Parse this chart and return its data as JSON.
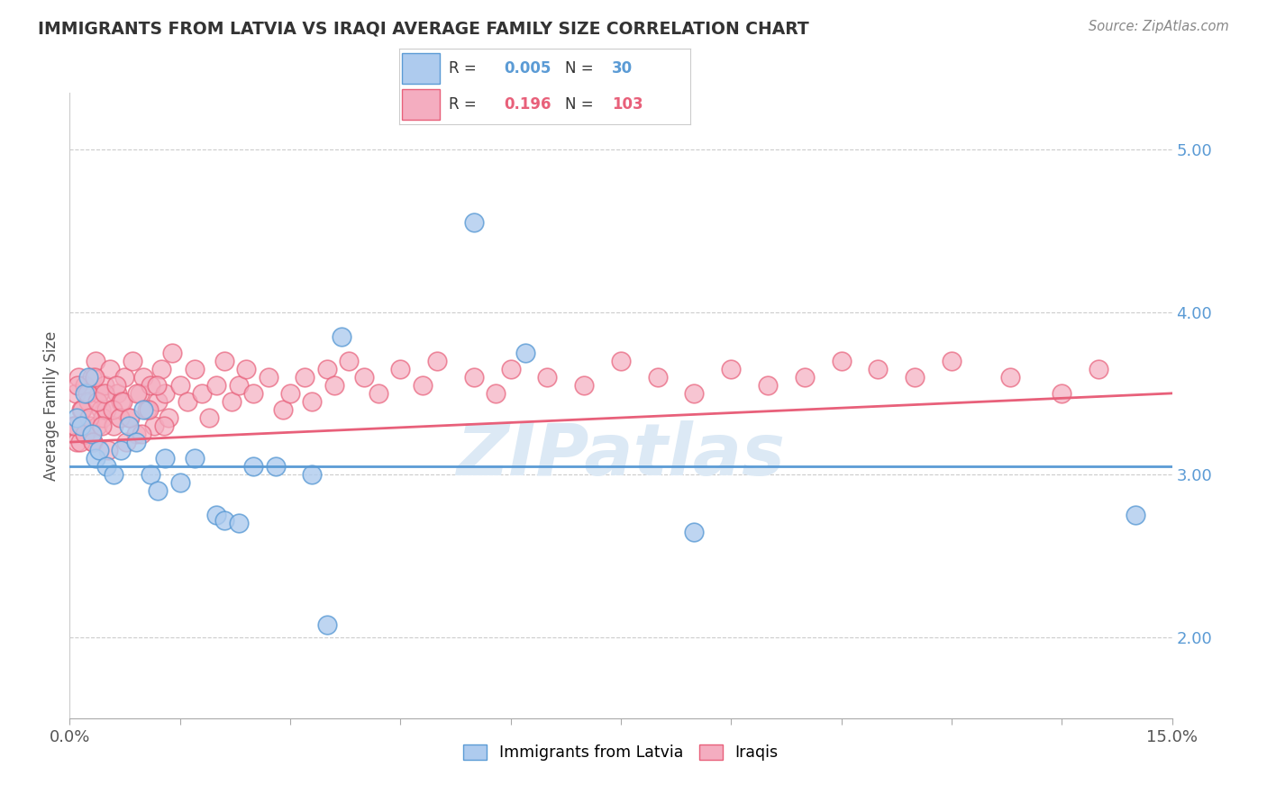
{
  "title": "IMMIGRANTS FROM LATVIA VS IRAQI AVERAGE FAMILY SIZE CORRELATION CHART",
  "source": "Source: ZipAtlas.com",
  "ylabel": "Average Family Size",
  "xmin": 0.0,
  "xmax": 15.0,
  "ymin": 1.5,
  "ymax": 5.35,
  "yticks": [
    2.0,
    3.0,
    4.0,
    5.0
  ],
  "background_color": "#ffffff",
  "watermark": "ZIPatlas",
  "legend_R1": "0.005",
  "legend_N1": "30",
  "legend_R2": "0.196",
  "legend_N2": "103",
  "label1": "Immigrants from Latvia",
  "label2": "Iraqis",
  "color1": "#aecbee",
  "color2": "#f4adc0",
  "trendline1_color": "#5b9bd5",
  "trendline2_color": "#e8607a",
  "blue_points_x": [
    0.1,
    0.15,
    0.2,
    0.25,
    0.3,
    0.35,
    0.4,
    0.5,
    0.6,
    0.7,
    0.8,
    0.9,
    1.0,
    1.1,
    1.2,
    1.3,
    1.5,
    1.7,
    2.0,
    2.1,
    2.3,
    2.5,
    2.8,
    3.3,
    3.7,
    5.5,
    6.2,
    8.5,
    14.5,
    3.5
  ],
  "blue_points_y": [
    3.35,
    3.3,
    3.5,
    3.6,
    3.25,
    3.1,
    3.15,
    3.05,
    3.0,
    3.15,
    3.3,
    3.2,
    3.4,
    3.0,
    2.9,
    3.1,
    2.95,
    3.1,
    2.75,
    2.72,
    2.7,
    3.05,
    3.05,
    3.0,
    3.85,
    4.55,
    3.75,
    2.65,
    2.75,
    2.08
  ],
  "pink_points_x": [
    0.05,
    0.08,
    0.1,
    0.12,
    0.15,
    0.18,
    0.2,
    0.22,
    0.25,
    0.28,
    0.3,
    0.32,
    0.35,
    0.38,
    0.4,
    0.42,
    0.45,
    0.48,
    0.5,
    0.55,
    0.6,
    0.65,
    0.7,
    0.75,
    0.8,
    0.85,
    0.9,
    0.95,
    1.0,
    1.05,
    1.1,
    1.15,
    1.2,
    1.25,
    1.3,
    1.35,
    1.4,
    1.5,
    1.6,
    1.7,
    1.8,
    1.9,
    2.0,
    2.1,
    2.2,
    2.3,
    2.4,
    2.5,
    2.7,
    2.9,
    3.0,
    3.2,
    3.3,
    3.5,
    3.6,
    3.8,
    4.0,
    4.2,
    4.5,
    4.8,
    5.0,
    5.5,
    5.8,
    6.0,
    6.5,
    7.0,
    7.5,
    8.0,
    8.5,
    9.0,
    9.5,
    10.0,
    10.5,
    11.0,
    11.5,
    12.0,
    12.8,
    13.5,
    14.0,
    0.07,
    0.11,
    0.14,
    0.17,
    0.21,
    0.24,
    0.27,
    0.31,
    0.34,
    0.37,
    0.44,
    0.47,
    0.52,
    0.58,
    0.63,
    0.68,
    0.72,
    0.77,
    0.82,
    0.92,
    0.98,
    1.08,
    1.18,
    1.28
  ],
  "pink_points_y": [
    3.3,
    3.5,
    3.2,
    3.6,
    3.4,
    3.3,
    3.55,
    3.25,
    3.45,
    3.3,
    3.6,
    3.2,
    3.7,
    3.3,
    3.5,
    3.4,
    3.35,
    3.55,
    3.4,
    3.65,
    3.3,
    3.5,
    3.45,
    3.6,
    3.35,
    3.7,
    3.25,
    3.5,
    3.6,
    3.4,
    3.55,
    3.3,
    3.45,
    3.65,
    3.5,
    3.35,
    3.75,
    3.55,
    3.45,
    3.65,
    3.5,
    3.35,
    3.55,
    3.7,
    3.45,
    3.55,
    3.65,
    3.5,
    3.6,
    3.4,
    3.5,
    3.6,
    3.45,
    3.65,
    3.55,
    3.7,
    3.6,
    3.5,
    3.65,
    3.55,
    3.7,
    3.6,
    3.5,
    3.65,
    3.6,
    3.55,
    3.7,
    3.6,
    3.5,
    3.65,
    3.55,
    3.6,
    3.7,
    3.65,
    3.6,
    3.7,
    3.6,
    3.5,
    3.65,
    3.3,
    3.55,
    3.2,
    3.4,
    3.25,
    3.5,
    3.35,
    3.2,
    3.6,
    3.45,
    3.3,
    3.5,
    3.15,
    3.4,
    3.55,
    3.35,
    3.45,
    3.2,
    3.35,
    3.5,
    3.25,
    3.4,
    3.55,
    3.3
  ],
  "blue_trend_y0": 3.05,
  "blue_trend_y1": 3.05,
  "pink_trend_y0": 3.2,
  "pink_trend_y1": 3.5,
  "xtick_positions": [
    0,
    1.5,
    3,
    4.5,
    6,
    7.5,
    9,
    10.5,
    12,
    13.5,
    15
  ],
  "xtick_labels_show": {
    "0": "0.0%",
    "15": "15.0%"
  }
}
